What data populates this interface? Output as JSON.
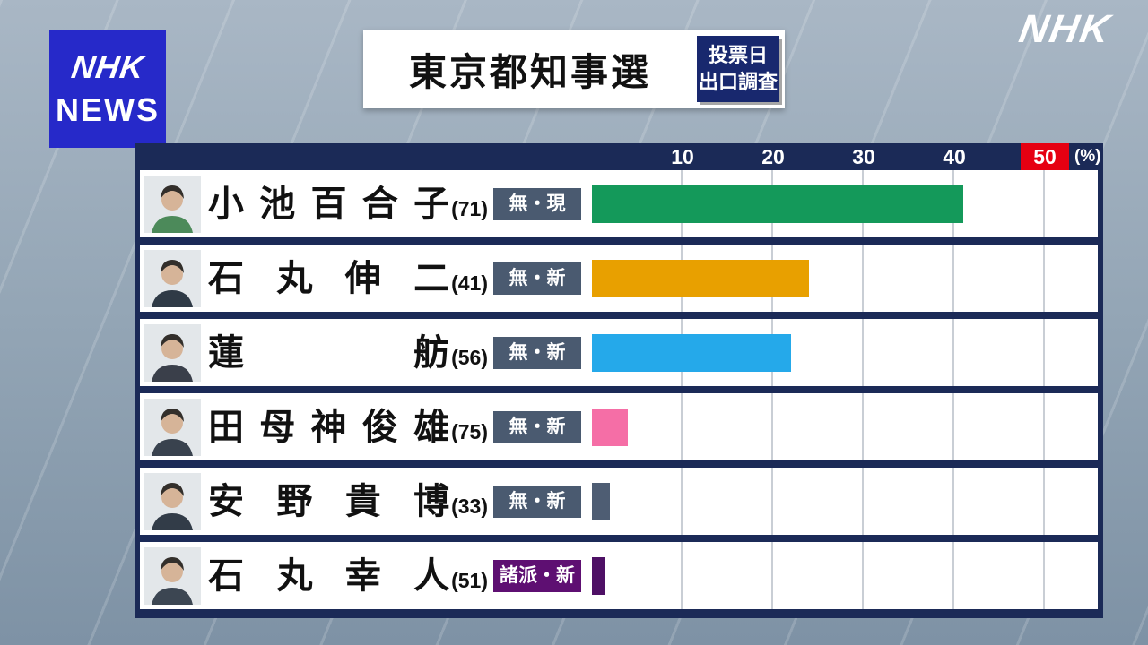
{
  "brand": {
    "logo_box": {
      "line1": "NHK",
      "line2": "NEWS"
    },
    "corner_logo": "NHK"
  },
  "header": {
    "title": "東京都知事選",
    "badge": {
      "line1": "投票日",
      "line2": "出口調査"
    }
  },
  "colors": {
    "panel_bg": "#1b2a57",
    "tick_highlight_bg": "#e60012",
    "logo_bg": "#2629c9",
    "header_badge_bg": "#18286e",
    "affiliation_badge_bg": "#4a5a70",
    "minor_party_badge_bg": "#5e0f72"
  },
  "chart_data": {
    "type": "bar",
    "orientation": "horizontal",
    "title": "東京都知事選",
    "subtitle": "投票日出口調査",
    "unit_label": "(%)",
    "xlim": [
      0,
      56
    ],
    "ticks": [
      "10",
      "20",
      "30",
      "40",
      "50"
    ],
    "highlighted_tick": "50",
    "grid": true,
    "categories": [
      "小池百合子",
      "石丸伸二",
      "蓮舫",
      "田母神俊雄",
      "安野貴博",
      "石丸幸人"
    ],
    "values": [
      41,
      24,
      22,
      4,
      2,
      1.5
    ],
    "candidates": [
      {
        "name": "小池百合子",
        "age": "(71)",
        "affiliation": "無・現",
        "value": 41,
        "bar_color": "#14995a",
        "affiliation_bg": "#4a5a70",
        "photo_color": "#4c8a5a"
      },
      {
        "name": "石丸伸二",
        "age": "(41)",
        "affiliation": "無・新",
        "value": 24,
        "bar_color": "#e8a000",
        "affiliation_bg": "#4a5a70",
        "photo_color": "#2f3a46"
      },
      {
        "name": "蓮舫",
        "age": "(56)",
        "affiliation": "無・新",
        "value": 22,
        "bar_color": "#25a9ea",
        "affiliation_bg": "#4a5a70",
        "photo_color": "#3a3f4a"
      },
      {
        "name": "田母神俊雄",
        "age": "(75)",
        "affiliation": "無・新",
        "value": 4,
        "bar_color": "#f56ea6",
        "affiliation_bg": "#4a5a70",
        "photo_color": "#39424e"
      },
      {
        "name": "安野貴博",
        "age": "(33)",
        "affiliation": "無・新",
        "value": 2,
        "bar_color": "#4e5d73",
        "affiliation_bg": "#4a5a70",
        "photo_color": "#323c48"
      },
      {
        "name": "石丸幸人",
        "age": "(51)",
        "affiliation": "諸派・新",
        "value": 1.5,
        "bar_color": "#4e1065",
        "affiliation_bg": "#5e0f72",
        "photo_color": "#3c4652"
      }
    ]
  }
}
